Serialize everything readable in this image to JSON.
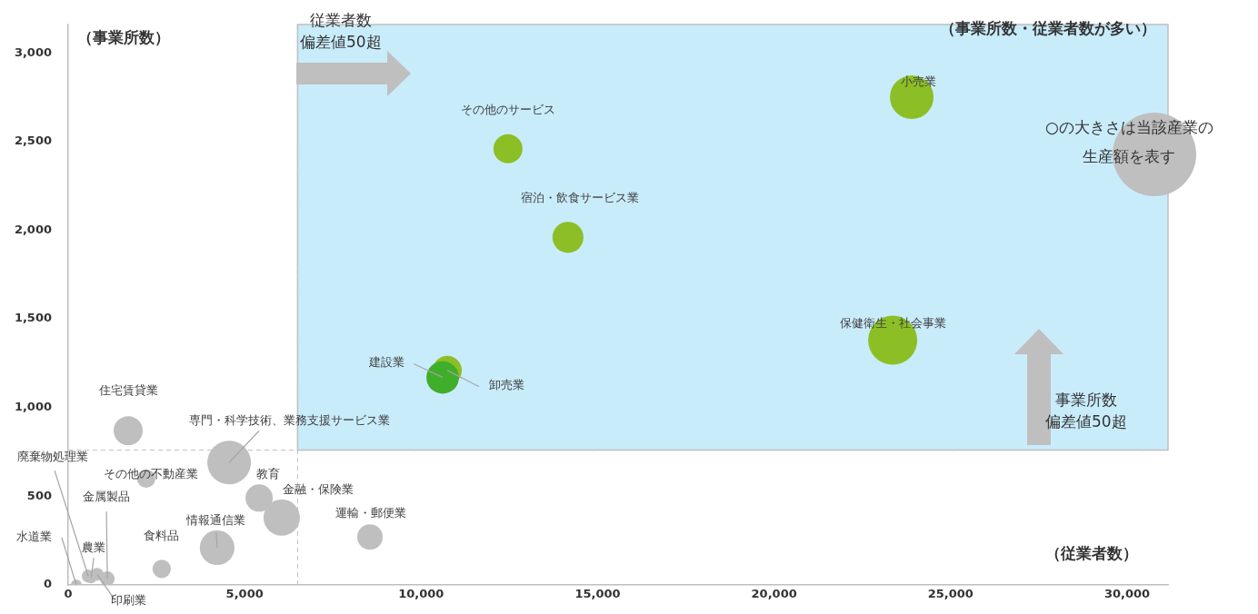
{
  "chart_data": {
    "type": "bubble",
    "xlabel": "（従業者数）",
    "ylabel": "（事業所数）",
    "xlim": [
      0,
      31160
    ],
    "ylim": [
      0,
      3160
    ],
    "xticks": [
      {
        "value": 0,
        "label": "0"
      },
      {
        "value": 5000,
        "label": "5,000"
      },
      {
        "value": 10000,
        "label": "10,000"
      },
      {
        "value": 15000,
        "label": "15,000"
      },
      {
        "value": 20000,
        "label": "20,000"
      },
      {
        "value": 25000,
        "label": "25,000"
      },
      {
        "value": 30000,
        "label": "30,000"
      }
    ],
    "yticks": [
      {
        "value": 0,
        "label": "0"
      },
      {
        "value": 500,
        "label": "500"
      },
      {
        "value": 1000,
        "label": "1,000"
      },
      {
        "value": 1500,
        "label": "1,500"
      },
      {
        "value": 2000,
        "label": "2,000"
      },
      {
        "value": 2500,
        "label": "2,500"
      },
      {
        "value": 3000,
        "label": "3,000"
      }
    ],
    "grid": false,
    "legend": false,
    "series": [
      {
        "name": "小売業",
        "color": "#8cbf26",
        "x": [
          23900
        ],
        "values": [
          2750
        ],
        "sizes": [
          0.79
        ]
      },
      {
        "name": "その他のサービス",
        "color": "#8cbf26",
        "x": [
          12460
        ],
        "values": [
          2460
        ],
        "sizes": [
          0.35
        ]
      },
      {
        "name": "宿泊・飲食サービス業",
        "color": "#8cbf26",
        "x": [
          14160
        ],
        "values": [
          1960
        ],
        "sizes": [
          0.4
        ]
      },
      {
        "name": "保健衛生・社会事業",
        "color": "#8cbf26",
        "x": [
          23360
        ],
        "values": [
          1380
        ],
        "sizes": [
          1
        ]
      },
      {
        "name": "建設業",
        "color": "#3fae2a",
        "x": [
          10610
        ],
        "values": [
          1170
        ],
        "sizes": [
          0.44
        ]
      },
      {
        "name": "卸売業",
        "color": "#8cbf26",
        "x": [
          10740
        ],
        "values": [
          1210
        ],
        "sizes": [
          0.35
        ]
      },
      {
        "name": "住宅賃貸業",
        "color": "#bfbfbf",
        "x": [
          1700
        ],
        "values": [
          870
        ],
        "sizes": [
          0.35
        ]
      },
      {
        "name": "専門・科学技術、業務支援サービス業",
        "color": "#bfbfbf",
        "x": [
          4560
        ],
        "values": [
          690
        ],
        "sizes": [
          0.79
        ]
      },
      {
        "name": "その他の不動産業",
        "color": "#bfbfbf",
        "x": [
          2210
        ],
        "values": [
          600
        ],
        "sizes": [
          0.14
        ]
      },
      {
        "name": "教育",
        "color": "#bfbfbf",
        "x": [
          5410
        ],
        "values": [
          490
        ],
        "sizes": [
          0.31
        ]
      },
      {
        "name": "金融・保険業",
        "color": "#bfbfbf",
        "x": [
          6050
        ],
        "values": [
          380
        ],
        "sizes": [
          0.55
        ]
      },
      {
        "name": "運輸・郵便業",
        "color": "#bfbfbf",
        "x": [
          8550
        ],
        "values": [
          270
        ],
        "sizes": [
          0.27
        ]
      },
      {
        "name": "情報通信業",
        "color": "#bfbfbf",
        "x": [
          4220
        ],
        "values": [
          210
        ],
        "sizes": [
          0.5
        ]
      },
      {
        "name": "食料品",
        "color": "#bfbfbf",
        "x": [
          2650
        ],
        "values": [
          90
        ],
        "sizes": [
          0.14
        ]
      },
      {
        "name": "水道業",
        "color": "#bfbfbf",
        "x": [
          230
        ],
        "values": [
          0
        ],
        "sizes": [
          0.05
        ]
      },
      {
        "name": "廃棄物処理業",
        "color": "#bfbfbf",
        "x": [
          570
        ],
        "values": [
          50
        ],
        "sizes": [
          0.07
        ]
      },
      {
        "name": "農業",
        "color": "#bfbfbf",
        "x": [
          650
        ],
        "values": [
          40
        ],
        "sizes": [
          0.05
        ]
      },
      {
        "name": "印刷業",
        "color": "#bfbfbf",
        "x": [
          820
        ],
        "values": [
          60
        ],
        "sizes": [
          0.07
        ]
      },
      {
        "name": "金属製品",
        "color": "#bfbfbf",
        "x": [
          1110
        ],
        "values": [
          35
        ],
        "sizes": [
          0.09
        ]
      }
    ],
    "ref_lines": [
      {
        "axis": "x",
        "value": 6500,
        "line_style": "dashed",
        "color": "#bfbfbf"
      },
      {
        "axis": "y",
        "value": 760,
        "line_style": "dashed",
        "color": "#bfbfbf"
      }
    ],
    "bands": [
      {
        "axis": "x",
        "from": 6500,
        "to": 31160,
        "color": "#c9ecfb"
      }
    ],
    "annotations": [
      "（事業所数・従業者数が多い）",
      "従業者数偏差値50超",
      "事業所数偏差値50超",
      "○の大きさは当該産業の生産額を表す"
    ]
  }
}
